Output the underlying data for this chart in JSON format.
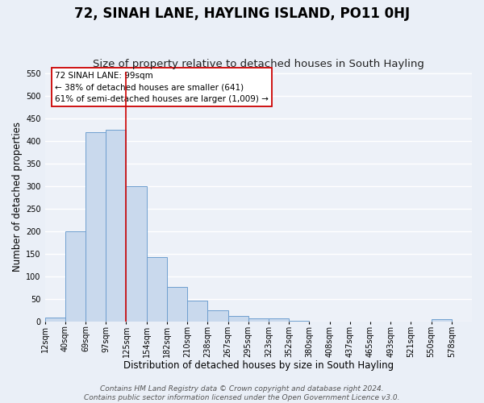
{
  "title": "72, SINAH LANE, HAYLING ISLAND, PO11 0HJ",
  "subtitle": "Size of property relative to detached houses in South Hayling",
  "xlabel": "Distribution of detached houses by size in South Hayling",
  "ylabel": "Number of detached properties",
  "bin_labels": [
    "12sqm",
    "40sqm",
    "69sqm",
    "97sqm",
    "125sqm",
    "154sqm",
    "182sqm",
    "210sqm",
    "238sqm",
    "267sqm",
    "295sqm",
    "323sqm",
    "352sqm",
    "380sqm",
    "408sqm",
    "437sqm",
    "465sqm",
    "493sqm",
    "521sqm",
    "550sqm",
    "578sqm"
  ],
  "bar_heights": [
    10,
    200,
    420,
    425,
    300,
    143,
    78,
    47,
    25,
    13,
    8,
    7,
    3,
    1,
    0,
    0,
    0,
    0,
    0,
    5,
    0
  ],
  "bar_color": "#c9d9ed",
  "bar_edge_color": "#6f9fcf",
  "ylim": [
    0,
    555
  ],
  "yticks": [
    0,
    50,
    100,
    150,
    200,
    250,
    300,
    350,
    400,
    450,
    500,
    550
  ],
  "property_line_x": 4,
  "property_line_color": "#cc0000",
  "annotation_title": "72 SINAH LANE: 99sqm",
  "annotation_line1": "← 38% of detached houses are smaller (641)",
  "annotation_line2": "61% of semi-detached houses are larger (1,009) →",
  "annotation_box_color": "#ffffff",
  "annotation_box_edge_color": "#cc0000",
  "footer_line1": "Contains HM Land Registry data © Crown copyright and database right 2024.",
  "footer_line2": "Contains public sector information licensed under the Open Government Licence v3.0.",
  "background_color": "#eaeff7",
  "plot_background_color": "#edf1f8",
  "grid_color": "#ffffff",
  "title_fontsize": 12,
  "subtitle_fontsize": 9.5,
  "axis_label_fontsize": 8.5,
  "tick_fontsize": 7,
  "footer_fontsize": 6.5,
  "annotation_fontsize": 7.5
}
